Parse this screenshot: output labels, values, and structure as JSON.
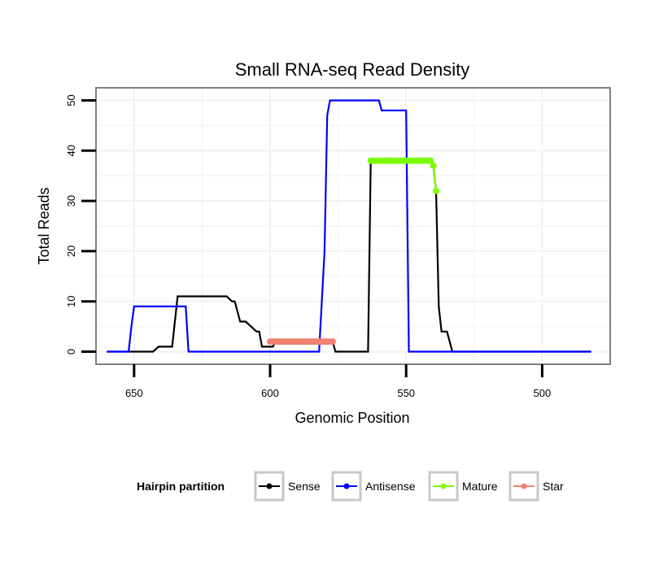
{
  "chart_data": {
    "type": "line",
    "title": "Small RNA-seq Read Density",
    "xlabel": "Genomic Position",
    "ylabel": "Total Reads",
    "xlim": [
      664,
      475
    ],
    "ylim": [
      -2.5,
      52.5
    ],
    "x_ticks": [
      650,
      600,
      550,
      500
    ],
    "x_tick_labels": [
      "650",
      "600",
      "550",
      "500"
    ],
    "y_ticks": [
      0,
      10,
      20,
      30,
      40,
      50
    ],
    "y_tick_labels": [
      "0",
      "10",
      "20",
      "30",
      "40",
      "50"
    ],
    "grid": true,
    "legend": {
      "title": "Hairpin partition",
      "position": "bottom",
      "entries": [
        "Sense",
        "Antisense",
        "Mature",
        "Star"
      ]
    },
    "colors": {
      "Sense": "#000000",
      "Antisense": "#0000ff",
      "Mature": "#7cfc00",
      "Star": "#f08070",
      "panel_border": "#7f7f7f",
      "grid": "#f2f2f2"
    },
    "series": [
      {
        "name": "Sense",
        "color": "#000000",
        "points": [
          [
            660,
            0
          ],
          [
            652,
            0
          ],
          [
            643,
            0
          ],
          [
            641,
            1
          ],
          [
            636,
            1
          ],
          [
            634,
            11
          ],
          [
            616,
            11
          ],
          [
            614,
            10
          ],
          [
            613,
            10
          ],
          [
            611,
            6
          ],
          [
            609,
            6
          ],
          [
            607,
            5
          ],
          [
            605,
            4
          ],
          [
            604,
            4
          ],
          [
            603,
            1
          ],
          [
            599,
            1
          ],
          [
            598,
            2
          ],
          [
            577,
            2
          ],
          [
            576,
            0
          ],
          [
            564,
            0
          ],
          [
            563,
            38
          ],
          [
            541,
            38
          ],
          [
            540,
            37
          ],
          [
            539,
            32
          ],
          [
            538,
            9
          ],
          [
            537,
            4
          ],
          [
            535,
            4
          ],
          [
            533,
            0
          ],
          [
            520,
            0
          ],
          [
            482,
            0
          ]
        ]
      },
      {
        "name": "Antisense",
        "color": "#0000ff",
        "points": [
          [
            660,
            0
          ],
          [
            652,
            0
          ],
          [
            651,
            5
          ],
          [
            650,
            9
          ],
          [
            640,
            9
          ],
          [
            632,
            9
          ],
          [
            631,
            9
          ],
          [
            630,
            0
          ],
          [
            620,
            0
          ],
          [
            600,
            0
          ],
          [
            590,
            0
          ],
          [
            582,
            0
          ],
          [
            580,
            20
          ],
          [
            579,
            47
          ],
          [
            578,
            50
          ],
          [
            570,
            50
          ],
          [
            560,
            50
          ],
          [
            559,
            48
          ],
          [
            550,
            48
          ],
          [
            549,
            0
          ],
          [
            530,
            0
          ],
          [
            500,
            0
          ],
          [
            482,
            0
          ]
        ]
      },
      {
        "name": "Mature",
        "color": "#7cfc00",
        "marker": true,
        "points": [
          [
            563,
            38
          ],
          [
            562,
            38
          ],
          [
            561,
            38
          ],
          [
            560,
            38
          ],
          [
            559,
            38
          ],
          [
            558,
            38
          ],
          [
            557,
            38
          ],
          [
            556,
            38
          ],
          [
            555,
            38
          ],
          [
            554,
            38
          ],
          [
            553,
            38
          ],
          [
            552,
            38
          ],
          [
            551,
            38
          ],
          [
            550,
            38
          ],
          [
            549,
            38
          ],
          [
            548,
            38
          ],
          [
            547,
            38
          ],
          [
            546,
            38
          ],
          [
            545,
            38
          ],
          [
            544,
            38
          ],
          [
            543,
            38
          ],
          [
            542,
            38
          ],
          [
            541,
            38
          ],
          [
            540,
            37
          ],
          [
            539,
            32
          ]
        ]
      },
      {
        "name": "Star",
        "color": "#f08070",
        "marker": true,
        "points": [
          [
            600,
            2
          ],
          [
            599,
            2
          ],
          [
            598,
            2
          ],
          [
            597,
            2
          ],
          [
            596,
            2
          ],
          [
            595,
            2
          ],
          [
            594,
            2
          ],
          [
            593,
            2
          ],
          [
            592,
            2
          ],
          [
            591,
            2
          ],
          [
            590,
            2
          ],
          [
            589,
            2
          ],
          [
            588,
            2
          ],
          [
            587,
            2
          ],
          [
            586,
            2
          ],
          [
            585,
            2
          ],
          [
            584,
            2
          ],
          [
            583,
            2
          ],
          [
            582,
            2
          ],
          [
            581,
            2
          ],
          [
            580,
            2
          ],
          [
            579,
            2
          ],
          [
            578,
            2
          ],
          [
            577,
            2
          ]
        ]
      }
    ]
  }
}
